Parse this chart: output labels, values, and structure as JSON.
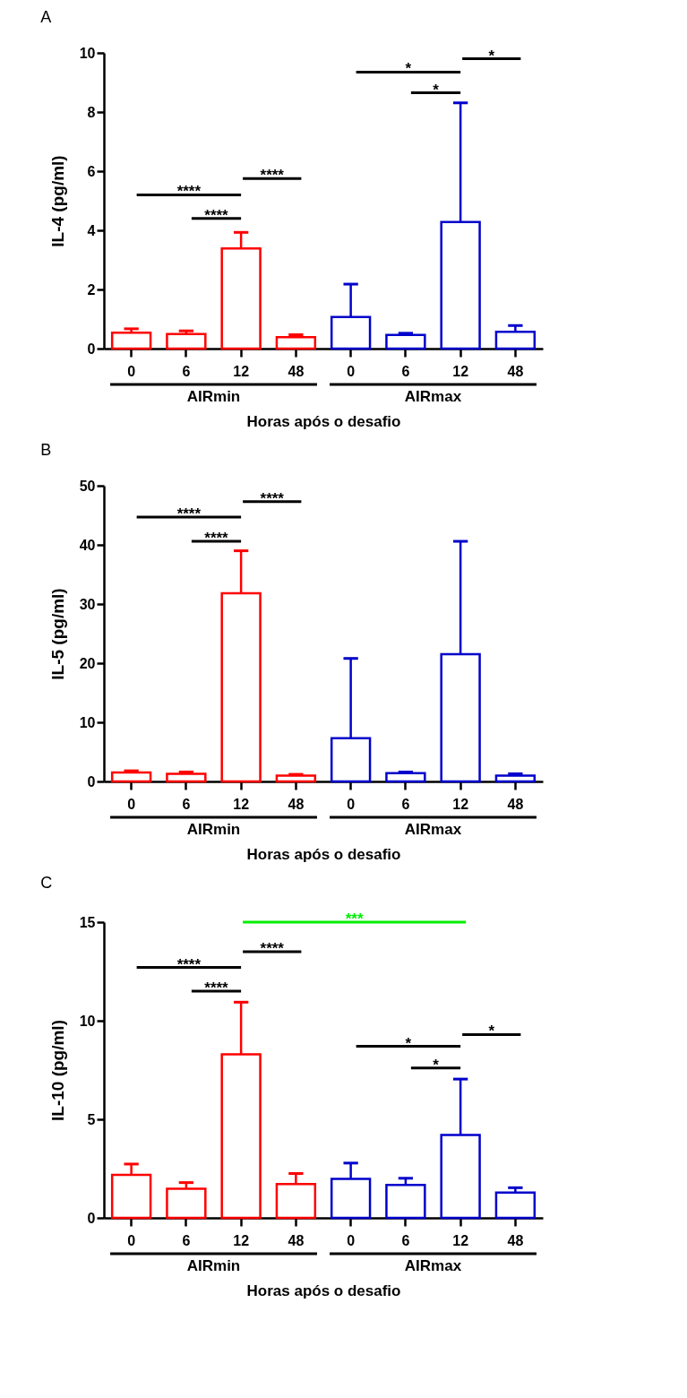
{
  "chart_data": [
    {
      "type": "bar",
      "title": "A",
      "xlabel": "Horas após o desafio",
      "ylabel": "IL-4 (pg/ml)",
      "categories": [
        "0",
        "6",
        "12",
        "48",
        "0",
        "6",
        "12",
        "48"
      ],
      "values": [
        0.54,
        0.49,
        3.39,
        0.39,
        1.07,
        0.46,
        4.28,
        0.57
      ],
      "errors": [
        [
          0.54,
          0.67
        ],
        [
          0.49,
          0.6
        ],
        [
          3.39,
          3.93
        ],
        [
          0.39,
          0.47
        ],
        [
          1.07,
          2.18
        ],
        [
          0.46,
          0.52
        ],
        [
          4.28,
          8.31
        ],
        [
          0.57,
          0.78
        ]
      ],
      "colors": [
        "#ff0000",
        "#ff0000",
        "#ff0000",
        "#ff0000",
        "#0000cc",
        "#0000cc",
        "#0000cc",
        "#0000cc"
      ],
      "ylim": [
        0,
        10
      ],
      "yticks": [
        0,
        2,
        4,
        6,
        8,
        10
      ],
      "annotations": [
        "****",
        "****",
        "****",
        "*",
        "*",
        "*",
        "AIRmin",
        "AIRmax"
      ]
    },
    {
      "type": "bar",
      "title": "B",
      "xlabel": "Horas após o desafio",
      "ylabel": "IL-5 (pg/ml)",
      "categories": [
        "0",
        "6",
        "12",
        "48",
        "0",
        "6",
        "12",
        "48"
      ],
      "values": [
        1.5,
        1.3,
        31.8,
        1.0,
        7.3,
        1.4,
        21.5,
        1.0
      ],
      "errors": [
        [
          1.5,
          1.8
        ],
        [
          1.3,
          1.6
        ],
        [
          31.8,
          39.0
        ],
        [
          1.0,
          1.2
        ],
        [
          7.3,
          20.8
        ],
        [
          1.4,
          1.6
        ],
        [
          21.5,
          40.6
        ],
        [
          1.0,
          1.3
        ]
      ],
      "colors": [
        "#ff0000",
        "#ff0000",
        "#ff0000",
        "#ff0000",
        "#0000cc",
        "#0000cc",
        "#0000cc",
        "#0000cc"
      ],
      "ylim": [
        0,
        50
      ],
      "yticks": [
        0,
        10,
        20,
        30,
        40,
        50
      ],
      "annotations": [
        "****",
        "****",
        "****",
        "AIRmin",
        "AIRmax"
      ]
    },
    {
      "type": "bar",
      "title": "C",
      "xlabel": "Horas após o desafio",
      "ylabel": "IL-10 (pg/ml)",
      "categories": [
        "0",
        "6",
        "12",
        "48",
        "0",
        "6",
        "12",
        "48"
      ],
      "values": [
        2.18,
        1.48,
        8.3,
        1.72,
        1.98,
        1.67,
        4.21,
        1.28
      ],
      "errors": [
        [
          2.18,
          2.73
        ],
        [
          1.48,
          1.79
        ],
        [
          8.3,
          10.94
        ],
        [
          1.72,
          2.25
        ],
        [
          1.98,
          2.78
        ],
        [
          1.67,
          2.01
        ],
        [
          4.21,
          7.04
        ],
        [
          1.28,
          1.53
        ]
      ],
      "colors": [
        "#ff0000",
        "#ff0000",
        "#ff0000",
        "#ff0000",
        "#0000cc",
        "#0000cc",
        "#0000cc",
        "#0000cc"
      ],
      "ylim": [
        0,
        15
      ],
      "yticks": [
        0,
        5,
        10,
        15
      ],
      "annotations": [
        "***",
        "****",
        "****",
        "****",
        "*",
        "*",
        "*",
        "AIRmin",
        "AIRmax"
      ]
    }
  ]
}
